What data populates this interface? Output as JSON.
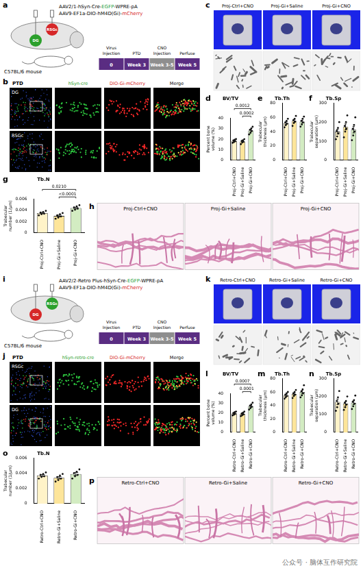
{
  "chart_data": [
    {
      "letter": "d",
      "type": "bar",
      "title": "BV/TV",
      "y_label": "Percent bone volume (%)",
      "categories": [
        "Proj-Ctrl+CNO",
        "Proj-Gi+Saline",
        "Proj-Gi+CNO"
      ],
      "values": [
        18.4,
        17.8,
        28.2
      ],
      "errors": [
        0.6,
        0.7,
        1.1
      ],
      "points": [
        [
          16.5,
          17.2,
          18.0,
          18.8,
          19.5,
          20.1
        ],
        [
          15.2,
          16.8,
          17.5,
          18.3,
          19.0,
          20.0
        ],
        [
          24.5,
          26.0,
          27.8,
          28.9,
          30.2,
          31.8
        ]
      ],
      "colors": [
        "#fff3c8",
        "#fde59a",
        "#d3ecc2"
      ],
      "ylim": [
        0,
        40
      ],
      "yticks": [
        0,
        10,
        20,
        30,
        40
      ],
      "comparisons": [
        {
          "groups": [
            0,
            2
          ],
          "label": "0.0012"
        },
        {
          "groups": [
            1,
            2
          ],
          "label": "0.0002"
        }
      ]
    },
    {
      "letter": "e",
      "type": "bar",
      "title": "Tb.Th",
      "y_label": "Trabecular thickness (μm)",
      "categories": [
        "Proj-Ctrl+CNO",
        "Proj-Gi+Saline",
        "Proj-Gi+CNO"
      ],
      "values": [
        52,
        55,
        54
      ],
      "errors": [
        1.8,
        2.0,
        2.1
      ],
      "points": [
        [
          46,
          49,
          51,
          53,
          55,
          58
        ],
        [
          48,
          52,
          54,
          56,
          58,
          62
        ],
        [
          47,
          50,
          53,
          55,
          58,
          61
        ]
      ],
      "colors": [
        "#fff3c8",
        "#fde59a",
        "#d3ecc2"
      ],
      "ylim": [
        0,
        80
      ],
      "yticks": [
        0,
        20,
        40,
        60,
        80
      ]
    },
    {
      "letter": "f",
      "type": "bar",
      "title": "Tb.Sp",
      "y_label": "Trabecular separation (μm)",
      "categories": [
        "Proj-Ctrl+CNO",
        "Proj-Gi+Saline",
        "Proj-Gi+CNO"
      ],
      "values": [
        150,
        175,
        160
      ],
      "errors": [
        13,
        16,
        17
      ],
      "points": [
        [
          110,
          125,
          140,
          155,
          170,
          200
        ],
        [
          120,
          150,
          165,
          180,
          200,
          235
        ],
        [
          105,
          130,
          150,
          165,
          185,
          225
        ]
      ],
      "colors": [
        "#fff3c8",
        "#fde59a",
        "#d3ecc2"
      ],
      "ylim": [
        0,
        300
      ],
      "yticks": [
        0,
        100,
        200,
        300
      ]
    },
    {
      "letter": "g",
      "type": "bar",
      "title": "Tb.N",
      "y_label": "Trabecular number (1/μm)",
      "categories": [
        "Proj-Ctrl+CNO",
        "Proj-Gi+Saline",
        "Proj-Gi+CNO"
      ],
      "values": [
        0.0035,
        0.003,
        0.0044
      ],
      "errors": [
        0.00012,
        0.00015,
        0.00015
      ],
      "points": [
        [
          0.0031,
          0.0033,
          0.0034,
          0.0036,
          0.0037,
          0.0039
        ],
        [
          0.0025,
          0.0027,
          0.0029,
          0.0031,
          0.0033,
          0.0035
        ],
        [
          0.0039,
          0.0041,
          0.0043,
          0.0045,
          0.0047,
          0.0049
        ]
      ],
      "colors": [
        "#fff3c8",
        "#fde59a",
        "#d3ecc2"
      ],
      "ylim": [
        0,
        0.006
      ],
      "yticks": [
        0,
        0.002,
        0.004,
        0.006
      ],
      "comparisons": [
        {
          "groups": [
            0,
            2
          ],
          "label": "0.0210"
        },
        {
          "groups": [
            1,
            2
          ],
          "label": "<0.0001"
        }
      ]
    },
    {
      "letter": "l",
      "type": "bar",
      "title": "BV/TV",
      "y_label": "Percent bone volume (%)",
      "categories": [
        "Retro-Ctrl+CNO",
        "Retro-Gi+Saline",
        "Retro-Gi+CNO"
      ],
      "values": [
        19.5,
        19.0,
        27.0
      ],
      "errors": [
        0.6,
        0.7,
        1.0
      ],
      "points": [
        [
          17.5,
          18.2,
          19.0,
          20.0,
          20.8,
          21.5
        ],
        [
          16.8,
          17.6,
          18.5,
          19.4,
          20.3,
          21.4
        ],
        [
          23.5,
          25.0,
          26.4,
          27.6,
          28.9,
          30.6
        ]
      ],
      "colors": [
        "#fff3c8",
        "#fde59a",
        "#d3ecc2"
      ],
      "ylim": [
        0,
        40
      ],
      "yticks": [
        0,
        10,
        20,
        30,
        40
      ],
      "comparisons": [
        {
          "groups": [
            0,
            2
          ],
          "label": "0.0007"
        },
        {
          "groups": [
            1,
            2
          ],
          "label": "0.0001"
        }
      ]
    },
    {
      "letter": "m",
      "type": "bar",
      "title": "Tb.Th",
      "y_label": "Trabecular thickness (μm)",
      "categories": [
        "Retro-Ctrl+CNO",
        "Retro-Gi+Saline",
        "Retro-Gi+CNO"
      ],
      "values": [
        55,
        57,
        60
      ],
      "errors": [
        1.5,
        1.8,
        2.7
      ],
      "points": [
        [
          50,
          52,
          54,
          56,
          58,
          60
        ],
        [
          51,
          54,
          56,
          58,
          60,
          63
        ],
        [
          52,
          55,
          58,
          61,
          64,
          70
        ]
      ],
      "colors": [
        "#fff3c8",
        "#fde59a",
        "#d3ecc2"
      ],
      "ylim": [
        0,
        80
      ],
      "yticks": [
        0,
        20,
        40,
        60,
        80
      ]
    },
    {
      "letter": "n",
      "type": "bar",
      "title": "Tb.Sp",
      "y_label": "Trabecular separation (μm)",
      "categories": [
        "Retro-Ctrl+CNO",
        "Retro-Gi+Saline",
        "Retro-Gi+CNO"
      ],
      "values": [
        170,
        160,
        165
      ],
      "errors": [
        16,
        11,
        11
      ],
      "points": [
        [
          120,
          140,
          160,
          175,
          195,
          230
        ],
        [
          125,
          140,
          155,
          165,
          175,
          200
        ],
        [
          130,
          145,
          160,
          170,
          180,
          205
        ]
      ],
      "colors": [
        "#fff3c8",
        "#fde59a",
        "#d3ecc2"
      ],
      "ylim": [
        0,
        300
      ],
      "yticks": [
        0,
        100,
        200,
        300
      ]
    },
    {
      "letter": "o",
      "type": "bar",
      "title": "Tb.N",
      "y_label": "Trabecular number (1/μm)",
      "categories": [
        "Retro-Ctrl+CNO",
        "Retro-Gi+Saline",
        "Retro-Gi+CNO"
      ],
      "values": [
        0.0037,
        0.0034,
        0.0039
      ],
      "errors": [
        0.00012,
        0.00015,
        0.0002
      ],
      "points": [
        [
          0.0033,
          0.0035,
          0.0036,
          0.0038,
          0.0039,
          0.0041
        ],
        [
          0.0029,
          0.0031,
          0.0033,
          0.0035,
          0.0037,
          0.0039
        ],
        [
          0.0033,
          0.0036,
          0.0038,
          0.004,
          0.0042,
          0.0045
        ]
      ],
      "colors": [
        "#fff3c8",
        "#fde59a",
        "#d3ecc2"
      ],
      "ylim": [
        0,
        0.006
      ],
      "yticks": [
        0,
        0.002,
        0.004,
        0.006
      ]
    }
  ],
  "panels": {
    "a": {
      "letter": "a",
      "vectors": [
        [
          {
            "text": "AAV2/1-hSyn-Cre-",
            "color": "#000000"
          },
          {
            "text": "EGFP",
            "color": "#1f9e3a"
          },
          {
            "text": "-WPRE-pA",
            "color": "#000000"
          }
        ],
        [
          {
            "text": "AAV9-EF1a-DIO-hM4D(Gi)-",
            "color": "#000000"
          },
          {
            "text": "mCherry",
            "color": "#d62728"
          }
        ]
      ],
      "regions": [
        {
          "label": "RSGc",
          "color": "#d62728"
        },
        {
          "label": "DG",
          "color": "#2ca02c"
        }
      ],
      "mouse": "C57BL/6 mouse",
      "timeline": [
        {
          "label": "Virus Injection",
          "time": "0",
          "color": "#5a2d82"
        },
        {
          "label": "PTD",
          "time": "Week 3",
          "color": "#5a2d82"
        },
        {
          "label": "CNO Injection",
          "time": "Week 3-5",
          "color": "#8e8e8e"
        },
        {
          "label": "Perfuse",
          "time": "Week 5",
          "color": "#5a2d82"
        }
      ]
    },
    "b": {
      "letter": "b",
      "title": "PTD",
      "columns": [
        {
          "label": "hSyn-cre",
          "color": "#2ca02c"
        },
        {
          "label": "DIO-Gi-mCherry",
          "color": "#d62728"
        },
        {
          "label": "Merge",
          "color": "#000000"
        }
      ],
      "rows": [
        "DG",
        "RSGc"
      ]
    },
    "c": {
      "letter": "c",
      "groups": [
        "Proj-Ctrl+CNO",
        "Proj-Gi+Saline",
        "Proj-Gi+CNO"
      ]
    },
    "h": {
      "letter": "h",
      "groups": [
        "Proj-Ctrl+CNO",
        "Proj-Gi+Saline",
        "Proj-Gi+CNO"
      ]
    },
    "i": {
      "letter": "i",
      "vectors": [
        [
          {
            "text": "AAV2/2-Retro Plus-hSyn-Cre-",
            "color": "#000000"
          },
          {
            "text": "EGFP",
            "color": "#1f9e3a"
          },
          {
            "text": "-WPRE-pA",
            "color": "#000000"
          }
        ],
        [
          {
            "text": "AAV9-EF1a-DIO-hM4D(Gi)-",
            "color": "#000000"
          },
          {
            "text": "mCherry",
            "color": "#d62728"
          }
        ]
      ],
      "regions": [
        {
          "label": "RSGc",
          "color": "#2ca02c"
        },
        {
          "label": "DG",
          "color": "#d62728"
        }
      ],
      "mouse": "C57BL/6 mouse",
      "timeline": [
        {
          "label": "Virus Injection",
          "time": "0",
          "color": "#5a2d82"
        },
        {
          "label": "PTD",
          "time": "Week 3",
          "color": "#5a2d82"
        },
        {
          "label": "CNO Injection",
          "time": "Week 3-5",
          "color": "#8e8e8e"
        },
        {
          "label": "Perfuse",
          "time": "Week 5",
          "color": "#5a2d82"
        }
      ]
    },
    "j": {
      "letter": "j",
      "title": "PTD",
      "columns": [
        {
          "label": "hSyn-retro-cre",
          "color": "#2ca02c"
        },
        {
          "label": "DIO-Gi-mCherry",
          "color": "#d62728"
        },
        {
          "label": "Merge",
          "color": "#000000"
        }
      ],
      "rows": [
        "RSGc",
        "DG"
      ]
    },
    "k": {
      "letter": "k",
      "groups": [
        "Retro-Ctrl+CNO",
        "Retro-Gi+Saline",
        "Retro-Gi+CNO"
      ]
    },
    "p": {
      "letter": "p",
      "groups": [
        "Retro-Ctrl+CNO",
        "Retro-Gi+Saline",
        "Retro-Gi+CNO"
      ]
    }
  },
  "watermark": "公众号 · 脑体互作研究院"
}
